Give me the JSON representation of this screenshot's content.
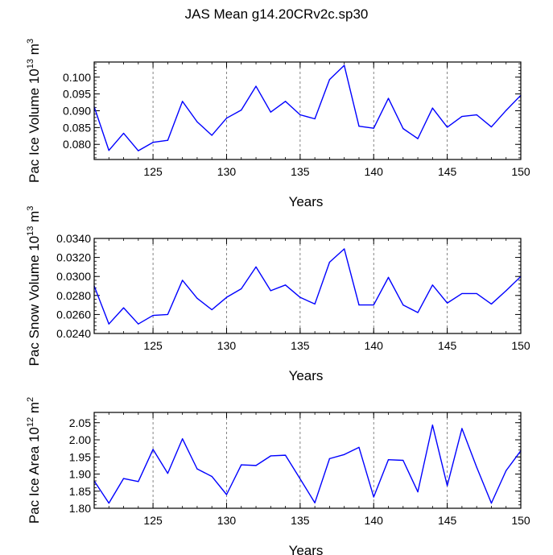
{
  "title": "JAS Mean g14.20CRv2c.sp30",
  "chart_data": [
    {
      "type": "line",
      "ylabel": "Pac Ice Volume",
      "ylabel_exp": "10",
      "ylabel_sup": "13",
      "ylabel_unit": "m",
      "ylabel_unit_sup": "3",
      "xlabel": "Years",
      "xlim": [
        121,
        150
      ],
      "ylim": [
        0.0755,
        0.1045
      ],
      "yticks": [
        0.08,
        0.085,
        0.09,
        0.095,
        0.1
      ],
      "ytick_labels": [
        "0.080",
        "0.085",
        "0.090",
        "0.095",
        "0.100"
      ],
      "xticks": [
        125,
        130,
        135,
        140,
        145,
        150
      ],
      "xtick_labels": [
        "125",
        "130",
        "135",
        "140",
        "145",
        "150"
      ],
      "grid_x": [
        125,
        130,
        135,
        140,
        145
      ],
      "color": "#0000ff",
      "x": [
        121,
        122,
        123,
        124,
        125,
        126,
        127,
        128,
        129,
        130,
        131,
        132,
        133,
        134,
        135,
        136,
        137,
        138,
        139,
        140,
        141,
        142,
        143,
        144,
        145,
        146,
        147,
        148,
        149,
        150
      ],
      "y": [
        0.0912,
        0.0782,
        0.0833,
        0.0781,
        0.0806,
        0.0812,
        0.0928,
        0.0867,
        0.0827,
        0.0878,
        0.0902,
        0.0973,
        0.0896,
        0.0928,
        0.0888,
        0.0876,
        0.0993,
        0.1035,
        0.0854,
        0.0848,
        0.0937,
        0.0847,
        0.0817,
        0.0908,
        0.0851,
        0.0883,
        0.0888,
        0.0852,
        0.0901,
        0.0946
      ]
    },
    {
      "type": "line",
      "ylabel": "Pac Snow Volume",
      "ylabel_exp": "10",
      "ylabel_sup": "13",
      "ylabel_unit": "m",
      "ylabel_unit_sup": "3",
      "xlabel": "Years",
      "xlim": [
        121,
        150
      ],
      "ylim": [
        0.024,
        0.034
      ],
      "yticks": [
        0.024,
        0.026,
        0.028,
        0.03,
        0.032,
        0.034
      ],
      "ytick_labels": [
        "0.0240",
        "0.0260",
        "0.0280",
        "0.0300",
        "0.0320",
        "0.0340"
      ],
      "xticks": [
        125,
        130,
        135,
        140,
        145,
        150
      ],
      "xtick_labels": [
        "125",
        "130",
        "135",
        "140",
        "145",
        "150"
      ],
      "grid_x": [
        125,
        130,
        135,
        140,
        145
      ],
      "color": "#0000ff",
      "x": [
        121,
        122,
        123,
        124,
        125,
        126,
        127,
        128,
        129,
        130,
        131,
        132,
        133,
        134,
        135,
        136,
        137,
        138,
        139,
        140,
        141,
        142,
        143,
        144,
        145,
        146,
        147,
        148,
        149,
        150
      ],
      "y": [
        0.029,
        0.025,
        0.0267,
        0.025,
        0.0259,
        0.026,
        0.0296,
        0.0277,
        0.0265,
        0.0278,
        0.0287,
        0.031,
        0.0285,
        0.0291,
        0.0278,
        0.0271,
        0.0315,
        0.0329,
        0.027,
        0.027,
        0.0299,
        0.027,
        0.0262,
        0.0291,
        0.0272,
        0.0282,
        0.0282,
        0.0271,
        0.0285,
        0.03
      ]
    },
    {
      "type": "line",
      "ylabel": "Pac Ice Area",
      "ylabel_exp": "10",
      "ylabel_sup": "12",
      "ylabel_unit": "m",
      "ylabel_unit_sup": "2",
      "xlabel": "Years",
      "xlim": [
        121,
        150
      ],
      "ylim": [
        1.8,
        2.08
      ],
      "yticks": [
        1.8,
        1.85,
        1.9,
        1.95,
        2.0,
        2.05
      ],
      "ytick_labels": [
        "1.80",
        "1.85",
        "1.90",
        "1.95",
        "2.00",
        "2.05"
      ],
      "xticks": [
        125,
        130,
        135,
        140,
        145,
        150
      ],
      "xtick_labels": [
        "125",
        "130",
        "135",
        "140",
        "145",
        "150"
      ],
      "grid_x": [
        125,
        130,
        135,
        140,
        145
      ],
      "color": "#0000ff",
      "x": [
        121,
        122,
        123,
        124,
        125,
        126,
        127,
        128,
        129,
        130,
        131,
        132,
        133,
        134,
        135,
        136,
        137,
        138,
        139,
        140,
        141,
        142,
        143,
        144,
        145,
        146,
        147,
        148,
        149,
        150
      ],
      "y": [
        1.88,
        1.815,
        1.887,
        1.878,
        1.972,
        1.902,
        2.003,
        1.915,
        1.893,
        1.84,
        1.927,
        1.925,
        1.953,
        1.955,
        1.886,
        1.816,
        1.945,
        1.957,
        1.978,
        1.833,
        1.942,
        1.94,
        1.848,
        2.043,
        1.866,
        2.033,
        1.92,
        1.815,
        1.91,
        1.968
      ]
    }
  ]
}
